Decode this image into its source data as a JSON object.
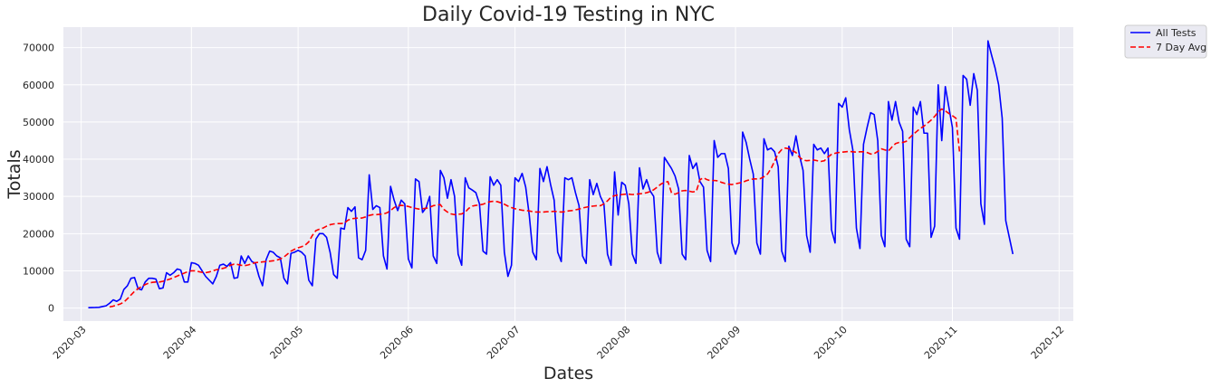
{
  "chart_data": {
    "type": "line",
    "title": "Daily Covid-19 Testing in NYC",
    "xlabel": "Dates",
    "ylabel": "Totals",
    "x_axis": "date",
    "xlim": [
      "2020-02-25",
      "2020-12-05"
    ],
    "ylim": [
      -3500,
      75500
    ],
    "x_ticks": [
      "2020-03",
      "2020-04",
      "2020-05",
      "2020-06",
      "2020-07",
      "2020-08",
      "2020-09",
      "2020-10",
      "2020-11",
      "2020-12"
    ],
    "x_tick_dates": [
      "2020-03-01",
      "2020-04-01",
      "2020-05-01",
      "2020-06-01",
      "2020-07-01",
      "2020-08-01",
      "2020-09-01",
      "2020-10-01",
      "2020-11-01",
      "2020-12-01"
    ],
    "y_ticks": [
      0,
      10000,
      20000,
      30000,
      40000,
      50000,
      60000,
      70000
    ],
    "grid": true,
    "legend_placement": "outside-top-right",
    "colors": {
      "all_tests": "#0000ff",
      "avg": "#ff0000",
      "background": "#eaeaf2",
      "grid": "#ffffff"
    },
    "series": [
      {
        "name": "All Tests",
        "style": "solid",
        "start_date": "2020-03-03",
        "values": [
          100,
          130,
          150,
          200,
          400,
          600,
          1300,
          2200,
          1800,
          2400,
          5000,
          6000,
          8000,
          8200,
          5200,
          4900,
          7000,
          8000,
          8000,
          7800,
          5200,
          5400,
          9500,
          8800,
          9500,
          10500,
          10200,
          7000,
          7000,
          12200,
          12000,
          11500,
          10000,
          8500,
          7500,
          6500,
          8500,
          11500,
          11800,
          11200,
          12200,
          8000,
          8200,
          14000,
          12000,
          14000,
          12500,
          12000,
          8500,
          6000,
          13000,
          15300,
          15000,
          14000,
          13500,
          8000,
          6500,
          14700,
          15000,
          15500,
          15000,
          14000,
          7500,
          6000,
          18500,
          20000,
          20000,
          19000,
          15000,
          9000,
          8000,
          21500,
          21200,
          27000,
          26000,
          27200,
          13500,
          13000,
          15500,
          35800,
          26500,
          27500,
          27000,
          14000,
          10500,
          32700,
          29000,
          26200,
          29000,
          28000,
          13200,
          10800,
          34700,
          34000,
          25700,
          27000,
          30000,
          14000,
          12000,
          37000,
          35000,
          29500,
          34500,
          30000,
          14500,
          11500,
          35000,
          32300,
          31700,
          31000,
          28000,
          15300,
          14500,
          35300,
          33000,
          34500,
          33000,
          15000,
          8500,
          11500,
          35000,
          34000,
          36200,
          32500,
          25000,
          15000,
          13000,
          37500,
          34000,
          38000,
          33200,
          29000,
          15000,
          12500,
          35000,
          34500,
          35000,
          31000,
          27500,
          14000,
          12000,
          34500,
          30500,
          33500,
          30000,
          28000,
          14500,
          11500,
          36600,
          25000,
          33800,
          33000,
          28000,
          14500,
          12000,
          37700,
          32000,
          34500,
          31500,
          30000,
          15000,
          12000,
          40500,
          39000,
          37500,
          35500,
          32000,
          14500,
          13000,
          41000,
          37500,
          39000,
          34000,
          32500,
          15500,
          12500,
          45000,
          40500,
          41500,
          41500,
          37500,
          17500,
          14500,
          17500,
          47300,
          44500,
          40000,
          36000,
          17500,
          14500,
          45500,
          42500,
          43000,
          42000,
          38000,
          15300,
          12500,
          43500,
          41000,
          46300,
          41000,
          37000,
          19500,
          15000,
          44000,
          42500,
          43000,
          41500,
          43000,
          21000,
          17500,
          55000,
          54000,
          56500,
          48000,
          42500,
          21500,
          16000,
          44000,
          48500,
          52500,
          52000,
          45000,
          19500,
          16500,
          55500,
          50500,
          55500,
          50000,
          47500,
          18500,
          16500,
          54000,
          52000,
          55500,
          47000,
          47000,
          19000,
          22000,
          60000,
          45000,
          59500,
          54000,
          48500,
          21500,
          18500,
          62500,
          61500,
          54500,
          63000,
          58500,
          28000,
          22500,
          71800,
          68000,
          64500,
          60000,
          51000,
          23500,
          19000,
          14500
        ]
      },
      {
        "name": "7 Day Avg",
        "style": "dashed",
        "start_date": "2020-03-09",
        "values": [
          300,
          500,
          800,
          1100,
          1600,
          2500,
          3500,
          4500,
          5200,
          5800,
          6300,
          6700,
          6900,
          7000,
          7000,
          7200,
          7500,
          7800,
          8200,
          8600,
          9000,
          9400,
          9800,
          10000,
          10000,
          9800,
          9600,
          9500,
          9700,
          10000,
          10300,
          10500,
          10700,
          11000,
          11500,
          11800,
          11700,
          11500,
          11400,
          11600,
          11900,
          12200,
          12300,
          12400,
          12500,
          12600,
          12700,
          12900,
          13200,
          13700,
          14500,
          15300,
          15800,
          16200,
          16500,
          16900,
          17800,
          19500,
          20800,
          21200,
          21500,
          22000,
          22400,
          22600,
          22700,
          22700,
          22800,
          23600,
          24000,
          24100,
          24200,
          24200,
          24500,
          24900,
          25100,
          25100,
          25200,
          25300,
          25600,
          26200,
          27000,
          27500,
          27600,
          27500,
          27300,
          27000,
          26800,
          26600,
          26700,
          26800,
          27100,
          27500,
          27700,
          27800,
          26500,
          25800,
          25300,
          25100,
          25200,
          25300,
          25800,
          26800,
          27400,
          27600,
          27700,
          27900,
          28300,
          28600,
          28700,
          28600,
          28300,
          27900,
          27400,
          27000,
          26700,
          26500,
          26300,
          26200,
          26100,
          25900,
          25800,
          25800,
          25800,
          25900,
          25900,
          26000,
          25900,
          25800,
          25900,
          26100,
          26200,
          26400,
          26600,
          26900,
          27100,
          27300,
          27400,
          27500,
          27500,
          28000,
          28800,
          29800,
          30200,
          30400,
          30500,
          30600,
          30600,
          30500,
          30600,
          30700,
          30800,
          31000,
          31300,
          31800,
          32500,
          33300,
          33800,
          34000,
          31000,
          30600,
          31000,
          31500,
          31600,
          31400,
          31200,
          31400,
          34500,
          35000,
          34500,
          34200,
          34300,
          34200,
          33800,
          33500,
          33300,
          33200,
          33400,
          33600,
          33800,
          34200,
          34500,
          34700,
          34700,
          34800,
          35300,
          36000,
          37500,
          39500,
          41500,
          42600,
          43000,
          42800,
          42300,
          41800,
          40500,
          39800,
          39600,
          39700,
          39800,
          39600,
          39400,
          39600,
          40600,
          41300,
          41600,
          41800,
          41900,
          42000,
          42100,
          42000,
          41900,
          42000,
          42000,
          41800,
          41400,
          41500,
          42100,
          42800,
          42500,
          42200,
          43300,
          44200,
          44500,
          44500,
          44800,
          45800,
          46700,
          47500,
          48300,
          48900,
          49700,
          50500,
          51500,
          52700,
          53500,
          53000,
          52300,
          51700,
          51000,
          42000
        ]
      }
    ]
  }
}
